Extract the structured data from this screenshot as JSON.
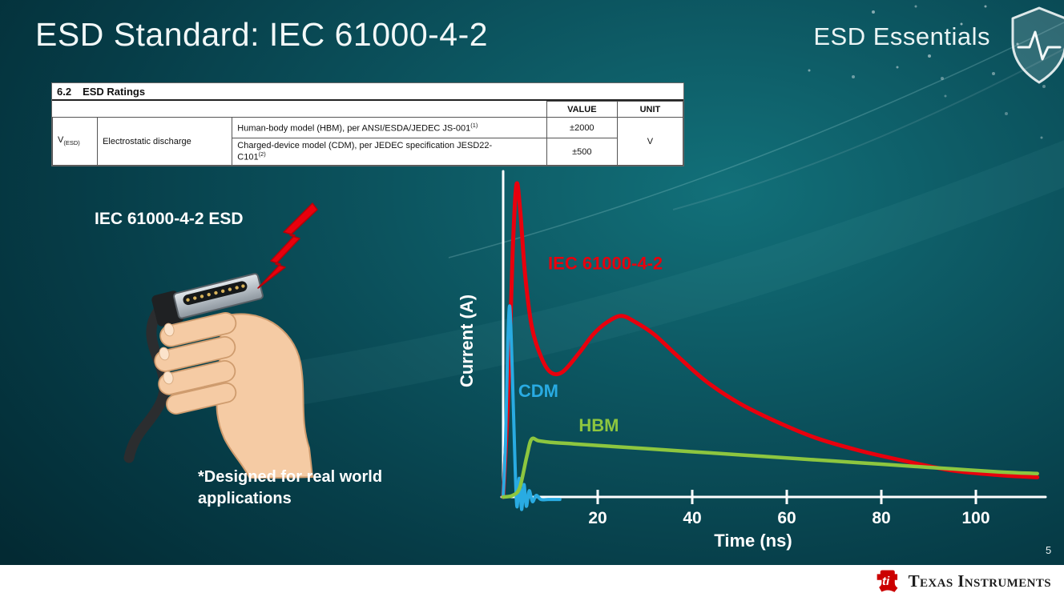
{
  "slide": {
    "title": "ESD Standard: IEC 61000-4-2",
    "series_brand": "ESD Essentials",
    "page_number": "5",
    "footer_brand": "Texas Instruments"
  },
  "icons": {
    "brand_icon": "shield-pulse-icon",
    "strike_icon": "lightning-bolt-icon",
    "footer_icon": "ti-bug-logo-icon"
  },
  "ratings_table": {
    "section_number": "6.2",
    "section_title": "ESD Ratings",
    "col_value": "VALUE",
    "col_unit": "UNIT",
    "param_symbol": "V",
    "param_symbol_sub": "(ESD)",
    "param_name": "Electrostatic discharge",
    "row_hbm": {
      "description": "Human-body model (HBM), per ANSI/ESDA/JEDEC JS-001",
      "sup": "(1)",
      "value": "±2000"
    },
    "row_cdm": {
      "description": "Charged-device model (CDM), per JEDEC specification JESD22-",
      "tail": "C101",
      "sup": "(2)",
      "value": "±500"
    },
    "unit": "V"
  },
  "illustration": {
    "caption": "IEC 61000-4-2 ESD",
    "footnote": "*Designed for real world applications"
  },
  "chart_data": {
    "type": "line",
    "title": "",
    "xlabel": "Time (ns)",
    "ylabel": "Current (A)",
    "x_ticks": [
      20,
      40,
      60,
      80,
      100
    ],
    "xlim": [
      0,
      113
    ],
    "ylim": [
      -5,
      105
    ],
    "grid": false,
    "legend_position": "inline-labels",
    "series": [
      {
        "name": "IEC 61000-4-2",
        "color": "#e8000d",
        "width": 5,
        "points": [
          [
            0,
            0
          ],
          [
            1,
            30
          ],
          [
            2,
            78
          ],
          [
            2.8,
            100
          ],
          [
            3.6,
            92
          ],
          [
            4.6,
            72
          ],
          [
            6,
            55
          ],
          [
            8,
            45
          ],
          [
            10,
            40
          ],
          [
            12.5,
            40
          ],
          [
            16,
            46
          ],
          [
            19,
            52
          ],
          [
            22,
            56
          ],
          [
            25,
            58
          ],
          [
            28,
            56
          ],
          [
            32,
            52
          ],
          [
            37,
            45
          ],
          [
            43,
            37
          ],
          [
            50,
            30
          ],
          [
            58,
            24
          ],
          [
            66,
            19
          ],
          [
            75,
            15
          ],
          [
            85,
            11.5
          ],
          [
            95,
            8.5
          ],
          [
            105,
            7
          ],
          [
            113,
            6.3
          ]
        ]
      },
      {
        "name": "CDM",
        "color": "#29abe2",
        "width": 4,
        "points": [
          [
            0,
            0
          ],
          [
            0.5,
            18
          ],
          [
            1.0,
            50
          ],
          [
            1.4,
            61
          ],
          [
            1.9,
            42
          ],
          [
            2.4,
            16
          ],
          [
            2.9,
            -3
          ],
          [
            3.4,
            6
          ],
          [
            3.9,
            -4
          ],
          [
            4.4,
            4
          ],
          [
            4.9,
            -3
          ],
          [
            5.5,
            2
          ],
          [
            6.2,
            -1.5
          ],
          [
            7,
            0.5
          ],
          [
            8,
            -0.8
          ],
          [
            9.5,
            -0.8
          ],
          [
            12,
            -0.8
          ]
        ]
      },
      {
        "name": "HBM",
        "color": "#8dc63f",
        "width": 4.5,
        "points": [
          [
            0,
            0
          ],
          [
            2,
            0.5
          ],
          [
            3.5,
            3
          ],
          [
            5,
            13
          ],
          [
            6,
            18.5
          ],
          [
            7.5,
            18
          ],
          [
            10,
            17.5
          ],
          [
            15,
            17
          ],
          [
            25,
            16
          ],
          [
            35,
            15
          ],
          [
            45,
            14
          ],
          [
            55,
            13
          ],
          [
            65,
            12
          ],
          [
            75,
            11
          ],
          [
            85,
            10
          ],
          [
            95,
            9
          ],
          [
            105,
            8
          ],
          [
            113,
            7.5
          ]
        ]
      }
    ],
    "labels": [
      {
        "text": "IEC 61000-4-2",
        "color": "#e8000d",
        "x": 9.5,
        "y": 73
      },
      {
        "text": "CDM",
        "color": "#29abe2",
        "x": 3.2,
        "y": 32
      },
      {
        "text": "HBM",
        "color": "#8dc63f",
        "x": 16,
        "y": 21
      }
    ]
  }
}
